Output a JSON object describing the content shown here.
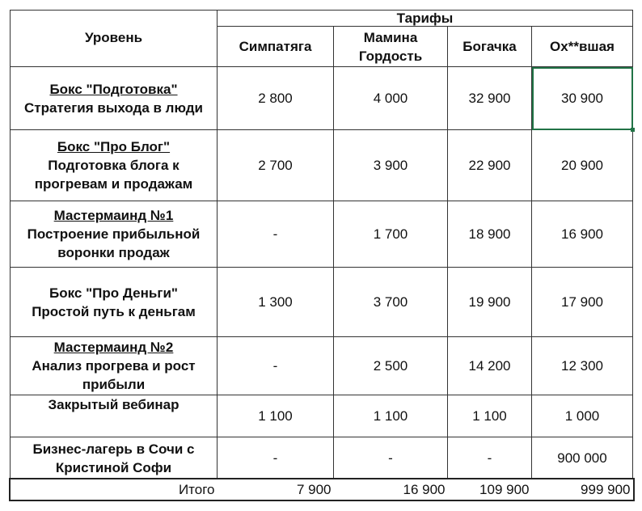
{
  "header": {
    "level": "Уровень",
    "tariffs": "Тарифы",
    "columns": [
      "Симпатяга",
      "Мамина Гордость",
      "Богачка",
      "Ох**вшая"
    ]
  },
  "rows": [
    {
      "title": "Бокс \"Подготовка\"",
      "subtitle": "Стратегия выхода в люди",
      "values": [
        "2 800",
        "4 000",
        "32 900",
        "30 900"
      ],
      "underlined": true
    },
    {
      "title": "Бокс \"Про Блог\"",
      "subtitle": "Подготовка блога к прогревам и продажам",
      "values": [
        "2 700",
        "3 900",
        "22 900",
        "20 900"
      ],
      "underlined": true
    },
    {
      "title": "Мастермаинд №1",
      "subtitle": "Построение прибыльной воронки продаж",
      "values": [
        "-",
        "1 700",
        "18 900",
        "16 900"
      ],
      "underlined": true
    },
    {
      "title": "Бокс \"Про Деньги\"",
      "subtitle": "Простой путь к деньгам",
      "values": [
        "1 300",
        "3 700",
        "19 900",
        "17 900"
      ],
      "underlined": false
    },
    {
      "title": "Мастермаинд №2",
      "subtitle": "Анализ прогрева и рост прибыли",
      "values": [
        "-",
        "2 500",
        "14 200",
        "12 300"
      ],
      "underlined": true
    },
    {
      "title": "Закрытый вебинар",
      "subtitle": "",
      "values": [
        "1 100",
        "1 100",
        "1 100",
        "1 000"
      ],
      "underlined": false
    },
    {
      "title": "Бизнес-лагерь в Сочи с Кристиной Софи",
      "subtitle": "",
      "values": [
        "-",
        "-",
        "-",
        "900 000"
      ],
      "underlined": false
    }
  ],
  "total": {
    "label": "Итого",
    "values": [
      "7 900",
      "16 900",
      "109 900",
      "999 900"
    ]
  },
  "colors": {
    "selection": "#217346"
  }
}
